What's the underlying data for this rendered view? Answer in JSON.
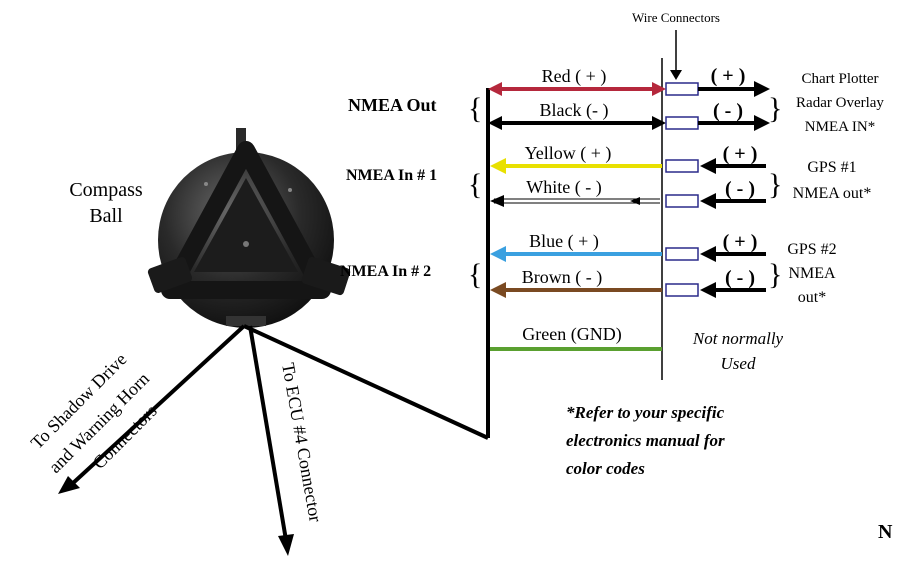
{
  "labels": {
    "wire_connectors": "Wire Connectors",
    "compass_line1": "Compass",
    "compass_line2": "Ball",
    "nmea_out": "NMEA Out",
    "nmea_in1": "NMEA In # 1",
    "nmea_in2": "NMEA In # 2",
    "not_normally_line1": "Not normally",
    "not_normally_line2": "Used",
    "to_shadow_line1": "To Shadow Drive",
    "to_shadow_line2": "and Warning Horn",
    "to_shadow_line3": "Connectors",
    "to_ecu": "To  ECU #4 Connector",
    "note_line1": "*Refer to your specific",
    "note_line2": "electronics manual for",
    "note_line3": "color codes",
    "edge_letter": "N"
  },
  "wires": [
    {
      "label": "Red ( + )",
      "color": "#b5283c"
    },
    {
      "label": "Black (- )",
      "color": "#000000"
    },
    {
      "label": "Yellow ( + )",
      "color": "#e8e000"
    },
    {
      "label": "White ( - )",
      "color": "#ffffff"
    },
    {
      "label": "Blue ( + )",
      "color": "#3aa0e0"
    },
    {
      "label": "Brown ( - )",
      "color": "#7a4a22"
    },
    {
      "label": "Green (GND)",
      "color": "#5aa030"
    }
  ],
  "signs": {
    "plus": "( + )",
    "minus": "( - )"
  },
  "devices": {
    "chart_line1": "Chart Plotter",
    "chart_line2": "Radar Overlay",
    "chart_line3": "NMEA IN*",
    "gps1_line1": "GPS #1",
    "gps1_line2": "NMEA out*",
    "gps2_line1": "GPS #2",
    "gps2_line2": "NMEA",
    "gps2_line3": "out*"
  }
}
